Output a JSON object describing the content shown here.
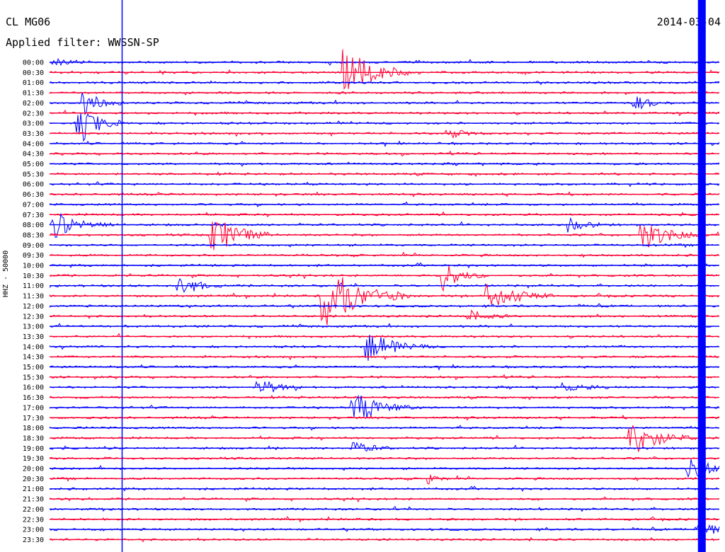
{
  "header": {
    "station": "CL MG06",
    "filter": "Applied filter: WWSSN-SP",
    "date": "2014-03-04"
  },
  "colors": {
    "trace_a": "#0000ff",
    "trace_b": "#ff0033",
    "background": "#ffffff"
  },
  "chart_data": {
    "type": "line",
    "title": "CL MG06",
    "subtitle": "Applied filter: WWSSN-SP",
    "ylabel": "HHZ - 50000",
    "tick_labels": [
      "00:00",
      "00:30",
      "01:00",
      "01:30",
      "02:00",
      "02:30",
      "03:00",
      "03:30",
      "04:00",
      "04:30",
      "05:00",
      "05:30",
      "06:00",
      "06:30",
      "07:00",
      "07:30",
      "08:00",
      "08:30",
      "09:00",
      "09:30",
      "10:00",
      "10:30",
      "11:00",
      "11:30",
      "12:00",
      "12:30",
      "13:00",
      "13:30",
      "14:00",
      "14:30",
      "15:00",
      "15:30",
      "16:00",
      "16:30",
      "17:00",
      "17:30",
      "18:00",
      "18:30",
      "19:00",
      "19:30",
      "20:00",
      "20:30",
      "21:00",
      "21:30",
      "22:00",
      "22:30",
      "23:00",
      "23:30"
    ],
    "row_duration_minutes": 30,
    "events": [
      {
        "row": 0,
        "minute": 0.2,
        "amp": 0.4,
        "dur": 2
      },
      {
        "row": 1,
        "minute": 13.2,
        "amp": 2.6,
        "dur": 3
      },
      {
        "row": 4,
        "minute": 1.5,
        "amp": 1.2,
        "dur": 2
      },
      {
        "row": 4,
        "minute": 26.2,
        "amp": 0.7,
        "dur": 2
      },
      {
        "row": 6,
        "minute": 1.3,
        "amp": 2.4,
        "dur": 2
      },
      {
        "row": 7,
        "minute": 17.8,
        "amp": 0.5,
        "dur": 2
      },
      {
        "row": 16,
        "minute": 0.2,
        "amp": 1.3,
        "dur": 3
      },
      {
        "row": 16,
        "minute": 23.3,
        "amp": 0.7,
        "dur": 2
      },
      {
        "row": 17,
        "minute": 7.2,
        "amp": 2.2,
        "dur": 3
      },
      {
        "row": 17,
        "minute": 26.5,
        "amp": 1.6,
        "dur": 3
      },
      {
        "row": 21,
        "minute": 17.6,
        "amp": 1.5,
        "dur": 2
      },
      {
        "row": 22,
        "minute": 5.8,
        "amp": 1.2,
        "dur": 2
      },
      {
        "row": 23,
        "minute": 12.2,
        "amp": 3.4,
        "dur": 4
      },
      {
        "row": 23,
        "minute": 19.6,
        "amp": 1.7,
        "dur": 3
      },
      {
        "row": 25,
        "minute": 18.8,
        "amp": 0.6,
        "dur": 2
      },
      {
        "row": 28,
        "minute": 14.2,
        "amp": 1.5,
        "dur": 3
      },
      {
        "row": 32,
        "minute": 9.3,
        "amp": 1.1,
        "dur": 2
      },
      {
        "row": 32,
        "minute": 23.0,
        "amp": 0.4,
        "dur": 3
      },
      {
        "row": 34,
        "minute": 13.6,
        "amp": 1.7,
        "dur": 3
      },
      {
        "row": 37,
        "minute": 26.0,
        "amp": 2.0,
        "dur": 3
      },
      {
        "row": 38,
        "minute": 13.6,
        "amp": 0.7,
        "dur": 2
      },
      {
        "row": 40,
        "minute": 28.6,
        "amp": 1.5,
        "dur": 2
      },
      {
        "row": 41,
        "minute": 17.0,
        "amp": 0.5,
        "dur": 1
      },
      {
        "row": 46,
        "minute": 29.0,
        "amp": 1.0,
        "dur": 2
      }
    ],
    "saturated_band_minute": 29.2,
    "grid": false
  }
}
